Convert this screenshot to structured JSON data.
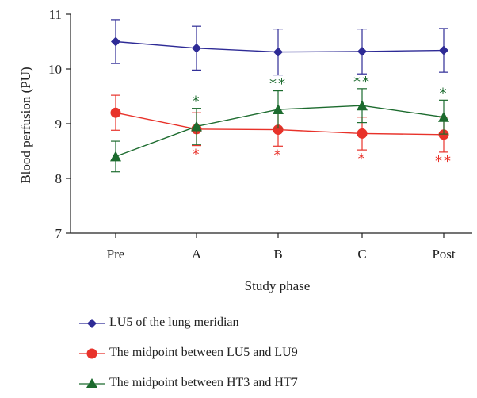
{
  "chart_data": {
    "type": "line",
    "categories": [
      "Pre",
      "A",
      "B",
      "C",
      "Post"
    ],
    "xlabel": "Study phase",
    "ylabel": "Blood perfusion (PU)",
    "ylim": [
      7,
      11
    ],
    "yticks": [
      "7",
      "8",
      "9",
      "10",
      "11"
    ],
    "grid": false,
    "legend_position": "bottom",
    "series": [
      {
        "name": "LU5 of the lung meridian",
        "color": "#2e2b96",
        "marker": "diamond",
        "values": [
          10.5,
          10.38,
          10.31,
          10.32,
          10.34
        ],
        "error": [
          0.4,
          0.4,
          0.42,
          0.41,
          0.4
        ],
        "significance": [
          "",
          "",
          "",
          "",
          ""
        ]
      },
      {
        "name": "The midpoint between LU5 and LU9",
        "color": "#e8322a",
        "marker": "circle",
        "values": [
          9.2,
          8.9,
          8.89,
          8.82,
          8.8
        ],
        "error": [
          0.32,
          0.3,
          0.3,
          0.3,
          0.32
        ],
        "significance": [
          "",
          "*",
          "*",
          "*",
          "**"
        ]
      },
      {
        "name": "The midpoint between HT3 and HT7",
        "color": "#1c6b2e",
        "marker": "triangle",
        "values": [
          8.4,
          8.95,
          9.26,
          9.33,
          9.12
        ],
        "error": [
          0.28,
          0.33,
          0.34,
          0.31,
          0.31
        ],
        "significance": [
          "",
          "*",
          "**",
          "**",
          "*"
        ]
      }
    ]
  }
}
